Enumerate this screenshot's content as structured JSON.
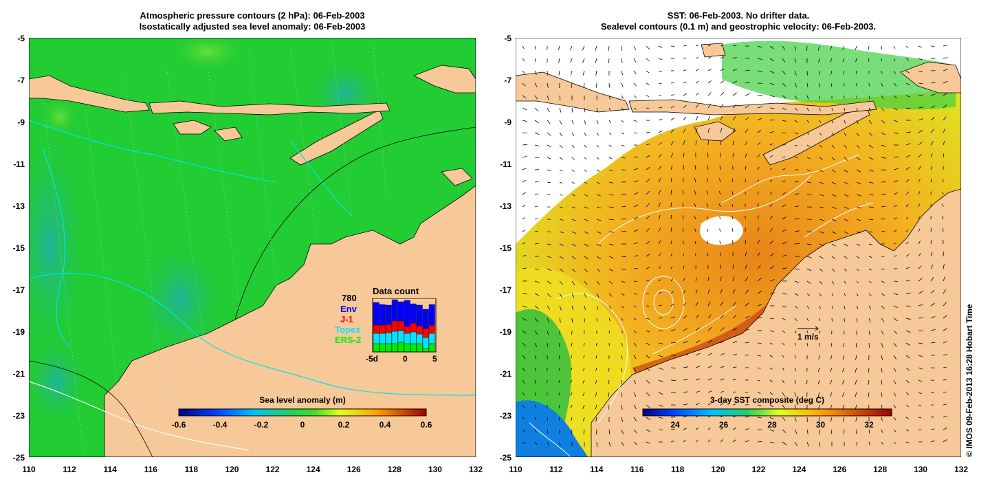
{
  "left_panel": {
    "title_line1": "Atmospheric pressure contours (2 hPa): 06-Feb-2003",
    "title_line2": "Isostatically adjusted sea level anomaly: 06-Feb-2003",
    "colorbar": {
      "title": "Sea level anomaly (m)",
      "ticks": [
        "-0.6",
        "-0.4",
        "-0.2",
        "0",
        "0.2",
        "0.4",
        "0.6"
      ]
    },
    "data_count": {
      "title": "Data count",
      "max_label": "780",
      "series": [
        {
          "name": "Env",
          "color": "#0000ff"
        },
        {
          "name": "J-1",
          "color": "#ff0000"
        },
        {
          "name": "Topex",
          "color": "#00e5ff"
        },
        {
          "name": "ERS-2",
          "color": "#00ee00"
        }
      ],
      "x_ticks": [
        "-5d",
        "0",
        "5"
      ]
    }
  },
  "right_panel": {
    "title_line1": "SST: 06-Feb-2003. No drifter data.",
    "title_line2": "Sealevel contours (0.1 m) and geostrophic velocity: 06-Feb-2003.",
    "colorbar": {
      "title": "3-day SST composite (deg C)",
      "ticks": [
        "24",
        "26",
        "28",
        "30",
        "32"
      ]
    },
    "scale_arrow_label": "1 m/s"
  },
  "axes": {
    "y_ticks": [
      "-5",
      "-7",
      "-9",
      "-11",
      "-13",
      "-15",
      "-17",
      "-19",
      "-21",
      "-23",
      "-25"
    ],
    "x_ticks": [
      "110",
      "112",
      "114",
      "116",
      "118",
      "120",
      "122",
      "124",
      "126",
      "128",
      "130",
      "132"
    ]
  },
  "credit": "© IMOS 09-Feb-2013 16:28 Hobart Time",
  "colors": {
    "land": "#f7c898",
    "ocean_green": "#22cc33",
    "sst_orange": "#f0a020"
  }
}
